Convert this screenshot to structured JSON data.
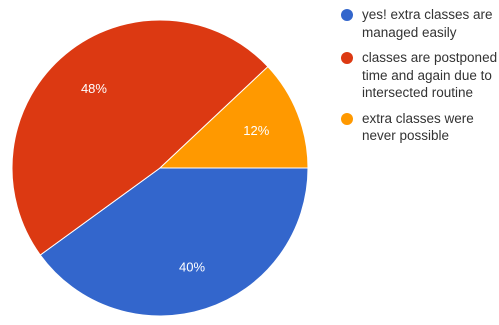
{
  "chart_data": {
    "type": "pie",
    "slices": [
      {
        "label": "yes! extra classes are managed easily",
        "value": 40,
        "display": "40%",
        "color": "#3366cc"
      },
      {
        "label": "classes are postponed time and again due to intersected routine",
        "value": 48,
        "display": "48%",
        "color": "#dc3912"
      },
      {
        "label": "extra classes were never possible",
        "value": 12,
        "display": "12%",
        "color": "#ff9900"
      }
    ],
    "legend_position": "right"
  },
  "legend": {
    "items": [
      {
        "label": "yes! extra classes are managed easily",
        "color": "#3366cc"
      },
      {
        "label": "classes are postponed time and again due to intersected routine",
        "color": "#dc3912"
      },
      {
        "label": "extra classes were never possible",
        "color": "#ff9900"
      }
    ]
  }
}
